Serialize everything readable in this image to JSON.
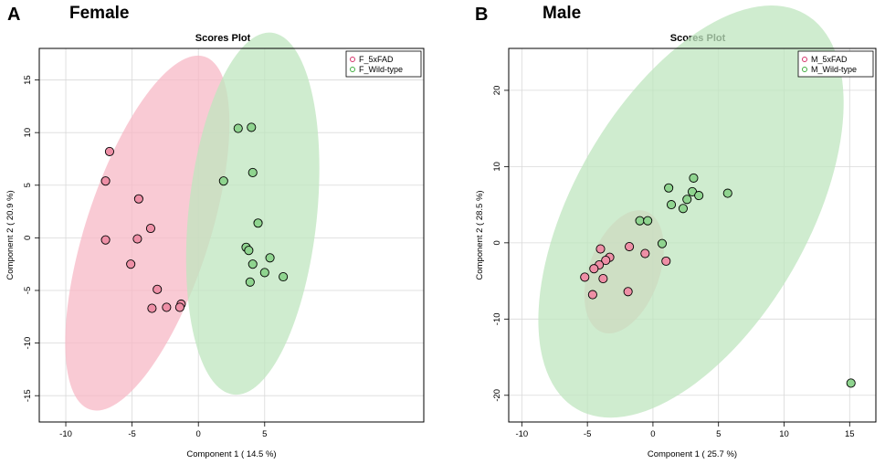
{
  "figure_labels": {
    "a": "A",
    "b": "B"
  },
  "panels": {
    "female": {
      "title": "Female"
    },
    "male": {
      "title": "Male"
    }
  },
  "colors": {
    "group1_fill": "#ee8fa6",
    "group1_ellipse": "#f7b8c6",
    "group1_legend": "#d6336a",
    "group2_fill": "#8fd48f",
    "group2_ellipse": "#bfe6bf",
    "group2_legend": "#3fae3f",
    "grid": "#d9d9d9"
  },
  "chart_data": [
    {
      "type": "scatter",
      "title": "Scores Plot",
      "xlabel": "Component 1 ( 14.5 %)",
      "ylabel": "Component 2 ( 20.9 %)",
      "xlim": [
        -12,
        17
      ],
      "ylim": [
        -17.5,
        18
      ],
      "xticks": [
        -10,
        -5,
        0,
        5
      ],
      "yticks": [
        -15,
        -10,
        -5,
        0,
        5,
        10,
        15
      ],
      "grid": true,
      "legend_position": "top-right",
      "series": [
        {
          "name": "F_5xFAD",
          "points": [
            [
              -6.7,
              8.2
            ],
            [
              -7.0,
              5.4
            ],
            [
              -4.5,
              3.7
            ],
            [
              -3.6,
              0.9
            ],
            [
              -7.0,
              -0.2
            ],
            [
              -4.6,
              -0.1
            ],
            [
              -5.1,
              -2.5
            ],
            [
              -3.1,
              -4.9
            ],
            [
              -3.5,
              -6.7
            ],
            [
              -2.4,
              -6.6
            ],
            [
              -1.3,
              -6.3
            ],
            [
              -1.4,
              -6.6
            ]
          ],
          "ellipse": {
            "cx": -3.85,
            "cy": 0.45,
            "rx": 5.2,
            "ry": 15.6,
            "angle_deg": 72
          }
        },
        {
          "name": "F_Wild-type",
          "points": [
            [
              3.0,
              10.4
            ],
            [
              4.0,
              10.5
            ],
            [
              4.1,
              6.2
            ],
            [
              1.9,
              5.4
            ],
            [
              4.5,
              1.4
            ],
            [
              3.6,
              -0.9
            ],
            [
              3.8,
              -1.2
            ],
            [
              5.4,
              -1.9
            ],
            [
              4.1,
              -2.5
            ],
            [
              6.4,
              -3.7
            ],
            [
              5.0,
              -3.3
            ],
            [
              3.9,
              -4.2
            ]
          ],
          "ellipse": {
            "cx": 4.1,
            "cy": 2.3,
            "rx": 5.4,
            "ry": 15.3,
            "angle_deg": 84
          }
        }
      ]
    },
    {
      "type": "scatter",
      "title": "Scores Plot",
      "xlabel": "Component 1 ( 25.7 %)",
      "ylabel": "Component 2 ( 28.5 %)",
      "xlim": [
        -11,
        17
      ],
      "ylim": [
        -23.5,
        25.5
      ],
      "xticks": [
        -10,
        -5,
        0,
        5,
        10,
        15
      ],
      "yticks": [
        -20,
        -10,
        0,
        10,
        20
      ],
      "grid": true,
      "legend_position": "top-right",
      "series": [
        {
          "name": "M_5xFAD",
          "points": [
            [
              -4.0,
              -0.8
            ],
            [
              -1.8,
              -0.5
            ],
            [
              -0.6,
              -1.4
            ],
            [
              -3.3,
              -1.9
            ],
            [
              -3.6,
              -2.3
            ],
            [
              -4.1,
              -2.9
            ],
            [
              -4.5,
              -3.4
            ],
            [
              1.0,
              -2.4
            ],
            [
              -5.2,
              -4.5
            ],
            [
              -3.8,
              -4.7
            ],
            [
              -1.9,
              -6.4
            ],
            [
              -4.6,
              -6.8
            ]
          ],
          "ellipse": {
            "cx": -2.2,
            "cy": -3.8,
            "rx": 3.4,
            "ry": 6.2,
            "angle_deg": 70
          }
        },
        {
          "name": "M_Wild-type",
          "points": [
            [
              3.1,
              8.5
            ],
            [
              1.2,
              7.2
            ],
            [
              5.7,
              6.5
            ],
            [
              3.0,
              6.7
            ],
            [
              3.5,
              6.2
            ],
            [
              2.6,
              5.7
            ],
            [
              1.4,
              5.0
            ],
            [
              2.3,
              4.5
            ],
            [
              -1.0,
              2.9
            ],
            [
              -0.4,
              2.9
            ],
            [
              0.7,
              -0.1
            ],
            [
              15.1,
              -18.4
            ]
          ],
          "ellipse": {
            "cx": 2.9,
            "cy": 4.1,
            "rx": 11.3,
            "ry": 22.0,
            "angle_deg": 60
          }
        }
      ]
    }
  ]
}
